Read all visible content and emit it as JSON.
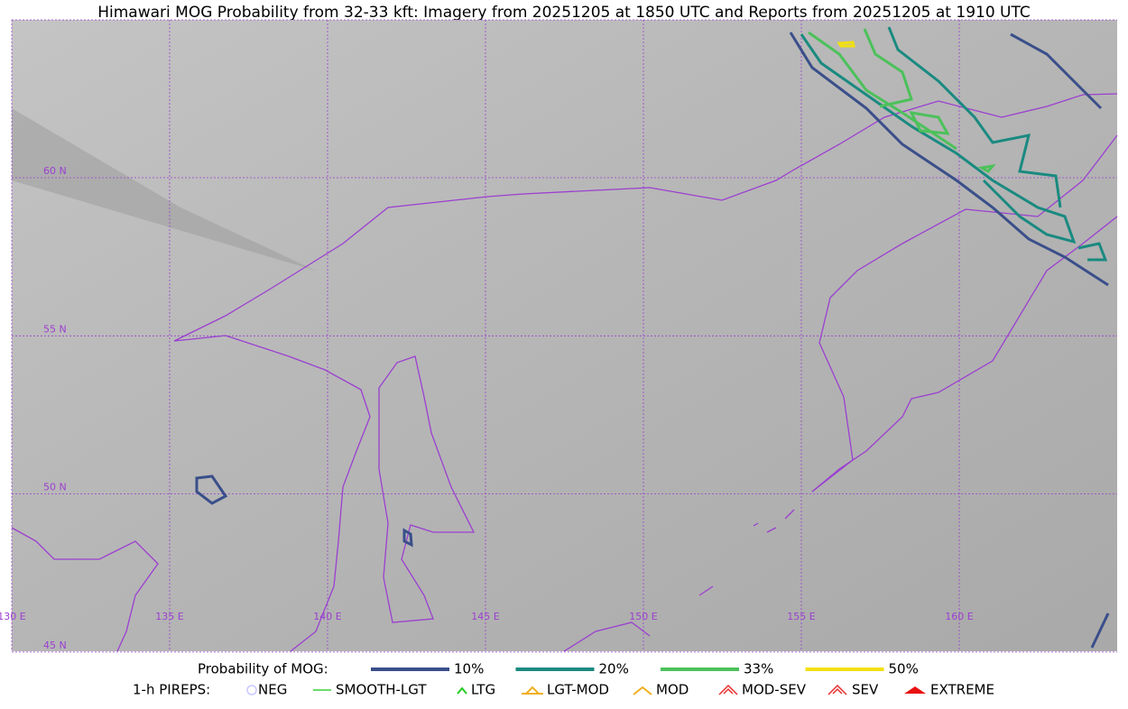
{
  "title": "Himawari MOG Probability from 32-33 kft: Imagery from 20251205 at 1850 UTC and Reports from 20251205 at 1910 UTC",
  "map": {
    "lon_labels": [
      "130 E",
      "135 E",
      "140 E",
      "145 E",
      "150 E",
      "155 E",
      "160 E"
    ],
    "lat_labels": [
      "60 N",
      "55 N",
      "50 N",
      "45 N"
    ]
  },
  "legend": {
    "probability": {
      "label": "Probability of MOG:",
      "items": [
        "10%",
        "20%",
        "33%",
        "50%"
      ]
    },
    "pireps": {
      "label": "1-h PIREPS:",
      "items": [
        "NEG",
        "SMOOTH-LGT",
        "LTG",
        "LGT-MOD",
        "MOD",
        "MOD-SEV",
        "SEV",
        "EXTREME"
      ]
    }
  }
}
